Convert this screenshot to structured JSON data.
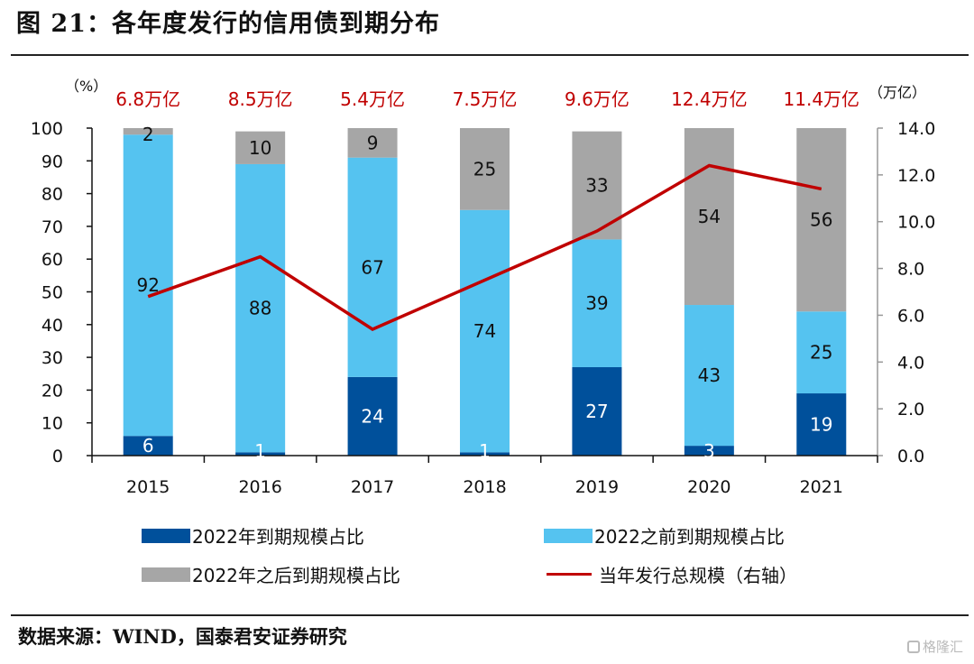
{
  "header": {
    "title": "图 21：各年度发行的信用债到期分布"
  },
  "footer": {
    "source": "数据来源：WIND，国泰君安证券研究",
    "watermark": "格隆汇"
  },
  "chart_data": {
    "type": "bar",
    "stacked": true,
    "title": "各年度发行的信用债到期分布",
    "categories": [
      "2015",
      "2016",
      "2017",
      "2018",
      "2019",
      "2020",
      "2021"
    ],
    "left_axis": {
      "unit_label": "（%）",
      "ylim": [
        0,
        100
      ],
      "ticks": [
        0,
        10,
        20,
        30,
        40,
        50,
        60,
        70,
        80,
        90,
        100
      ]
    },
    "right_axis": {
      "unit_label": "（万亿）",
      "ylim": [
        0,
        14
      ],
      "ticks": [
        "0.0",
        "2.0",
        "4.0",
        "6.0",
        "8.0",
        "10.0",
        "12.0",
        "14.0"
      ]
    },
    "series": [
      {
        "name": "2022年到期规模占比",
        "kind": "bar",
        "axis": "left",
        "color": "#00509b",
        "label_color": "#ffffff",
        "values": [
          6,
          1,
          24,
          1,
          27,
          3,
          19
        ]
      },
      {
        "name": "2022之前到期规模占比",
        "kind": "bar",
        "axis": "left",
        "color": "#55c3f0",
        "label_color": "#111111",
        "values": [
          92,
          88,
          67,
          74,
          39,
          43,
          25
        ]
      },
      {
        "name": "2022年之后到期规模占比",
        "kind": "bar",
        "axis": "left",
        "color": "#a6a6a6",
        "label_color": "#111111",
        "values": [
          2,
          10,
          9,
          25,
          33,
          54,
          56
        ]
      },
      {
        "name": "当年发行总规模（右轴）",
        "kind": "line",
        "axis": "right",
        "color": "#c00000",
        "values": [
          6.8,
          8.5,
          5.4,
          7.5,
          9.6,
          12.4,
          11.4
        ]
      }
    ],
    "annotations": [
      "6.8万亿",
      "8.5万亿",
      "5.4万亿",
      "7.5万亿",
      "9.6万亿",
      "12.4万亿",
      "11.4万亿"
    ],
    "legend_position": "bottom",
    "grid": false
  }
}
